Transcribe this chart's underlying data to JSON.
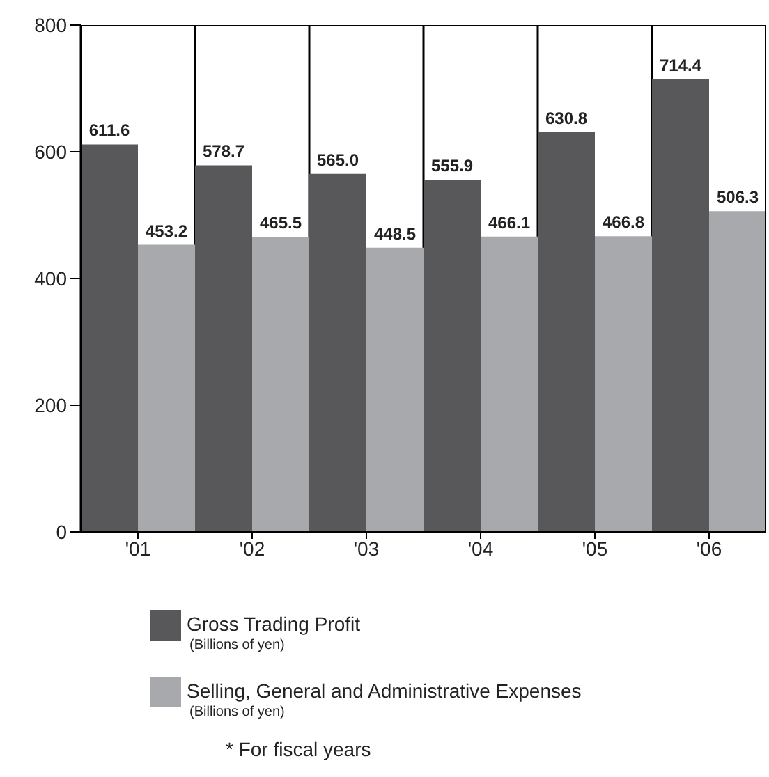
{
  "chart_data": {
    "type": "bar",
    "categories": [
      "'01",
      "'02",
      "'03",
      "'04",
      "'05",
      "'06"
    ],
    "series": [
      {
        "name": "Gross Trading Profit",
        "color": "#58585a",
        "values": [
          611.6,
          578.7,
          565.0,
          555.9,
          630.8,
          714.4
        ],
        "value_labels": [
          "611.6",
          "578.7",
          "565.0",
          "555.9",
          "630.8",
          "714.4"
        ]
      },
      {
        "name": "Selling, General and Administrative Expenses",
        "color": "#a7a9ac",
        "values": [
          453.2,
          465.5,
          448.5,
          466.1,
          466.8,
          506.3
        ],
        "value_labels": [
          "453.2",
          "465.5",
          "448.5",
          "466.1",
          "466.8",
          "506.3"
        ]
      }
    ],
    "ylim": [
      0,
      800
    ],
    "yticks": [
      0,
      200,
      400,
      600,
      800
    ],
    "grid": "x",
    "legend": "bottom",
    "annotations": [
      "(Billions of yen)",
      "(Billions of yen)",
      "* For fiscal years"
    ]
  }
}
